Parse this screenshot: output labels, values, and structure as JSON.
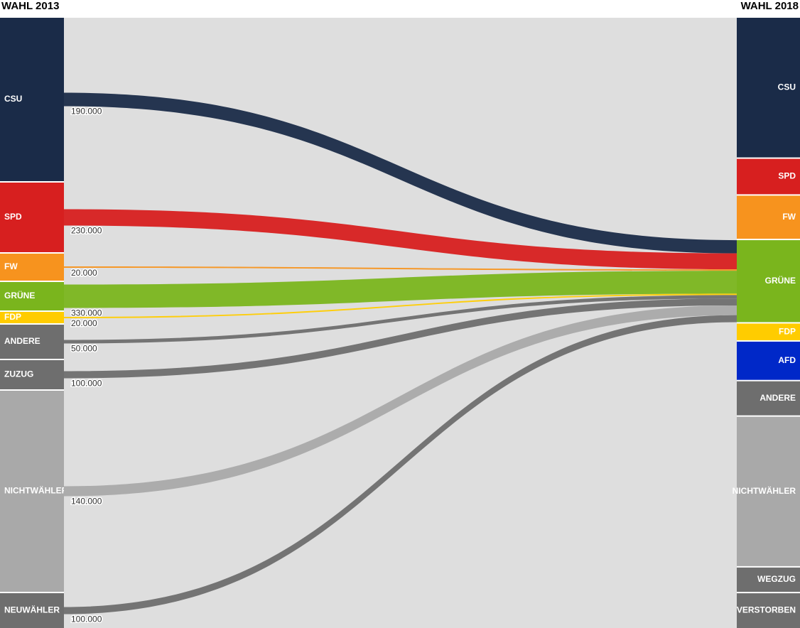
{
  "chart_data": {
    "type": "sankey",
    "left_title": "WAHL 2013",
    "right_title": "WAHL 2018",
    "left_nodes": [
      {
        "name": "CSU",
        "color": "#1a2b48",
        "value": 2300000
      },
      {
        "name": "SPD",
        "color": "#d71f1f",
        "value": 980000
      },
      {
        "name": "FW",
        "color": "#f7931e",
        "value": 380000
      },
      {
        "name": "GRÜNE",
        "color": "#7ab51d",
        "value": 400000
      },
      {
        "name": "FDP",
        "color": "#ffcc00",
        "value": 160000
      },
      {
        "name": "ANDERE",
        "color": "#6e6e6e",
        "value": 480000
      },
      {
        "name": "ZUZUG",
        "color": "#6e6e6e",
        "value": 410000
      },
      {
        "name": "NICHTWÄHLER",
        "color": "#a9a9a9",
        "value": 2830000
      },
      {
        "name": "NEUWÄHLER",
        "color": "#6e6e6e",
        "value": 490000
      }
    ],
    "right_nodes": [
      {
        "name": "CSU",
        "color": "#1a2b48",
        "value": 2010000
      },
      {
        "name": "SPD",
        "color": "#d71f1f",
        "value": 510000
      },
      {
        "name": "FW",
        "color": "#f7931e",
        "value": 620000
      },
      {
        "name": "GRÜNE",
        "color": "#7ab51d",
        "value": 1180000,
        "inflows": [
          190000,
          230000,
          20000,
          330000,
          20000,
          50000,
          100000,
          140000,
          100000
        ],
        "inflow_labels": [
          "190.000",
          "230.000",
          "20.000",
          "330.000",
          "20.000",
          "50.000",
          "100.000",
          "140.000",
          "100.000"
        ]
      },
      {
        "name": "FDP",
        "color": "#ffcc00",
        "value": 240000
      },
      {
        "name": "AFD",
        "color": "#0028c8",
        "value": 550000
      },
      {
        "name": "ANDERE",
        "color": "#6e6e6e",
        "value": 490000
      },
      {
        "name": "NICHTWÄHLER",
        "color": "#a9a9a9",
        "value": 2150000
      },
      {
        "name": "WEGZUG",
        "color": "#6e6e6e",
        "value": 350000
      },
      {
        "name": "VERSTORBEN",
        "color": "#6e6e6e",
        "value": 500000
      }
    ]
  }
}
